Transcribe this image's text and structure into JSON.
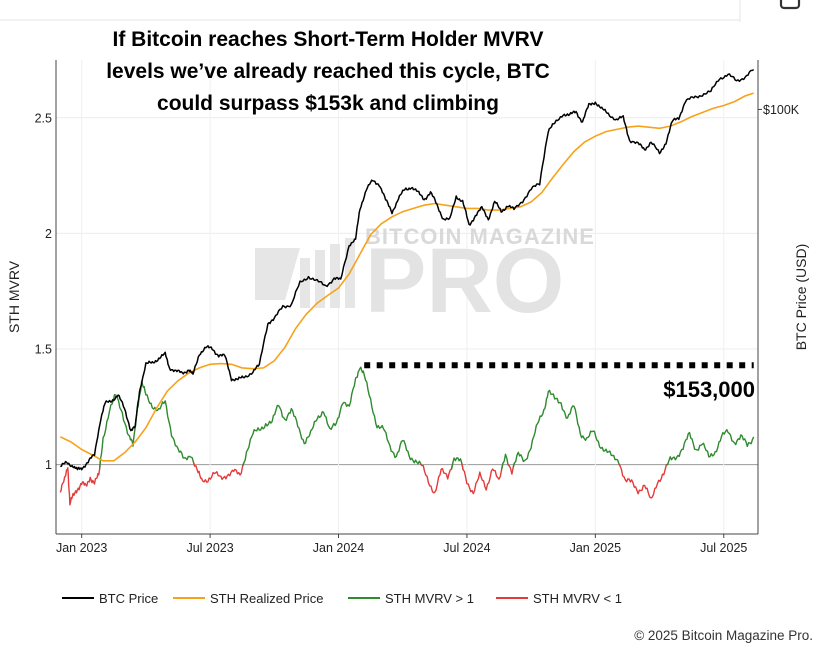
{
  "chart_data": {
    "type": "line",
    "title": "If Bitcoin reaches Short-Term Holder MVRV levels we've already reached this cycle, BTC could surpass $153k and climbing",
    "title_lines": [
      "If Bitcoin reaches Short-Term Holder MVRV",
      "levels we’ve already reached this cycle, BTC",
      "could surpass $153k and climbing"
    ],
    "ylabel_left": "STH MVRV",
    "ylabel_right": "BTC Price (USD)",
    "left_ticks": [
      "1",
      "1.5",
      "2",
      "2.5"
    ],
    "left_ylim": [
      0.7,
      2.75
    ],
    "right_scale": "log",
    "right_ylim_usd": [
      12000,
      128000
    ],
    "right_ticks": [
      {
        "label": "$100K",
        "value": 100000
      }
    ],
    "x_ticks": [
      {
        "label": "Jan 2023",
        "t": 1
      },
      {
        "label": "Jul 2023",
        "t": 7
      },
      {
        "label": "Jan 2024",
        "t": 13
      },
      {
        "label": "Jul 2024",
        "t": 19
      },
      {
        "label": "Jan 2025",
        "t": 25
      },
      {
        "label": "Jul 2025",
        "t": 31
      }
    ],
    "x_range_months": [
      -0.2,
      32.6
    ],
    "mvrv_threshold": 1,
    "target": {
      "label": "$153,000",
      "mvrv_level": 1.43,
      "from_t": 14.2,
      "to_t": 32.4
    },
    "grid": true,
    "legend_position": "bottom",
    "series": [
      {
        "name": "BTC Price",
        "axis": "right",
        "color": "#000000",
        "points": [
          [
            0,
            16800
          ],
          [
            0.3,
            17100
          ],
          [
            0.6,
            16900
          ],
          [
            0.8,
            16500
          ],
          [
            1.0,
            16700
          ],
          [
            1.3,
            17200
          ],
          [
            1.6,
            17800
          ],
          [
            1.9,
            21500
          ],
          [
            2.1,
            23000
          ],
          [
            2.4,
            23400
          ],
          [
            2.7,
            24000
          ],
          [
            3.0,
            22400
          ],
          [
            3.3,
            20200
          ],
          [
            3.5,
            20400
          ],
          [
            3.7,
            24500
          ],
          [
            4.0,
            28000
          ],
          [
            4.3,
            28200
          ],
          [
            4.6,
            28900
          ],
          [
            4.9,
            29400
          ],
          [
            5.1,
            27600
          ],
          [
            5.4,
            27000
          ],
          [
            5.7,
            26800
          ],
          [
            6.0,
            27300
          ],
          [
            6.2,
            26500
          ],
          [
            6.5,
            29600
          ],
          [
            6.8,
            30400
          ],
          [
            7.1,
            30300
          ],
          [
            7.4,
            29300
          ],
          [
            7.7,
            29100
          ],
          [
            8.0,
            26100
          ],
          [
            8.3,
            25900
          ],
          [
            8.6,
            26300
          ],
          [
            9.0,
            27000
          ],
          [
            9.3,
            27800
          ],
          [
            9.7,
            34500
          ],
          [
            10.0,
            35000
          ],
          [
            10.4,
            37500
          ],
          [
            10.8,
            37700
          ],
          [
            11.2,
            42000
          ],
          [
            11.6,
            43500
          ],
          [
            12.0,
            42300
          ],
          [
            12.4,
            41500
          ],
          [
            12.8,
            43000
          ],
          [
            13.1,
            42600
          ],
          [
            13.5,
            51000
          ],
          [
            13.8,
            52000
          ],
          [
            14.0,
            61000
          ],
          [
            14.3,
            67000
          ],
          [
            14.6,
            70000
          ],
          [
            14.9,
            69000
          ],
          [
            15.2,
            63500
          ],
          [
            15.5,
            60000
          ],
          [
            15.8,
            64000
          ],
          [
            16.1,
            67000
          ],
          [
            16.4,
            68000
          ],
          [
            16.7,
            66000
          ],
          [
            17.0,
            64000
          ],
          [
            17.3,
            66000
          ],
          [
            17.6,
            62000
          ],
          [
            17.9,
            58000
          ],
          [
            18.2,
            57500
          ],
          [
            18.5,
            65000
          ],
          [
            18.8,
            63000
          ],
          [
            19.1,
            56000
          ],
          [
            19.4,
            59000
          ],
          [
            19.7,
            61000
          ],
          [
            20.0,
            58000
          ],
          [
            20.3,
            63000
          ],
          [
            20.6,
            60000
          ],
          [
            20.9,
            62000
          ],
          [
            21.2,
            60500
          ],
          [
            21.6,
            63500
          ],
          [
            22.0,
            67000
          ],
          [
            22.4,
            69000
          ],
          [
            22.8,
            90000
          ],
          [
            23.1,
            93000
          ],
          [
            23.5,
            98000
          ],
          [
            23.8,
            97000
          ],
          [
            24.1,
            99000
          ],
          [
            24.4,
            94000
          ],
          [
            24.7,
            102000
          ],
          [
            25.0,
            104000
          ],
          [
            25.3,
            100000
          ],
          [
            25.6,
            98000
          ],
          [
            26.0,
            95000
          ],
          [
            26.3,
            96000
          ],
          [
            26.6,
            86000
          ],
          [
            27.0,
            84000
          ],
          [
            27.3,
            82000
          ],
          [
            27.6,
            85000
          ],
          [
            28.0,
            80000
          ],
          [
            28.3,
            85000
          ],
          [
            28.6,
            94000
          ],
          [
            28.9,
            96000
          ],
          [
            29.2,
            104000
          ],
          [
            29.6,
            106000
          ],
          [
            30.0,
            108000
          ],
          [
            30.4,
            109000
          ],
          [
            30.8,
            117000
          ],
          [
            31.2,
            119000
          ],
          [
            31.6,
            115000
          ],
          [
            32.0,
            118000
          ],
          [
            32.4,
            122000
          ]
        ]
      },
      {
        "name": "STH Realized Price",
        "axis": "right",
        "color": "#f7a21b",
        "points": [
          [
            0,
            19500
          ],
          [
            0.5,
            19000
          ],
          [
            1.0,
            18300
          ],
          [
            1.5,
            17800
          ],
          [
            2.0,
            17300
          ],
          [
            2.5,
            17300
          ],
          [
            3.0,
            18000
          ],
          [
            3.5,
            19000
          ],
          [
            4.0,
            20400
          ],
          [
            4.5,
            22500
          ],
          [
            5.0,
            24500
          ],
          [
            5.5,
            25800
          ],
          [
            6.0,
            26800
          ],
          [
            6.5,
            27500
          ],
          [
            7.0,
            28000
          ],
          [
            7.5,
            28100
          ],
          [
            8.0,
            28000
          ],
          [
            8.5,
            27500
          ],
          [
            9.0,
            27400
          ],
          [
            9.5,
            27500
          ],
          [
            10.0,
            28500
          ],
          [
            10.5,
            30500
          ],
          [
            11.0,
            33500
          ],
          [
            11.5,
            36000
          ],
          [
            12.0,
            38000
          ],
          [
            12.5,
            39500
          ],
          [
            13.0,
            41000
          ],
          [
            13.5,
            44000
          ],
          [
            14.0,
            48500
          ],
          [
            14.5,
            53500
          ],
          [
            15.0,
            56500
          ],
          [
            15.5,
            58500
          ],
          [
            16.0,
            60000
          ],
          [
            16.5,
            61000
          ],
          [
            17.0,
            62000
          ],
          [
            17.5,
            62500
          ],
          [
            18.0,
            62000
          ],
          [
            18.5,
            61500
          ],
          [
            19.0,
            61000
          ],
          [
            19.5,
            61000
          ],
          [
            20.0,
            60500
          ],
          [
            20.5,
            60500
          ],
          [
            21.0,
            61000
          ],
          [
            21.5,
            61500
          ],
          [
            22.0,
            63000
          ],
          [
            22.5,
            66000
          ],
          [
            23.0,
            71000
          ],
          [
            23.5,
            76000
          ],
          [
            24.0,
            81000
          ],
          [
            24.5,
            85000
          ],
          [
            25.0,
            87500
          ],
          [
            25.5,
            89500
          ],
          [
            26.0,
            90500
          ],
          [
            26.5,
            91500
          ],
          [
            27.0,
            92000
          ],
          [
            27.5,
            91500
          ],
          [
            28.0,
            91000
          ],
          [
            28.5,
            92000
          ],
          [
            29.0,
            94000
          ],
          [
            29.5,
            96500
          ],
          [
            30.0,
            98500
          ],
          [
            30.5,
            100500
          ],
          [
            31.0,
            102000
          ],
          [
            31.5,
            104000
          ],
          [
            32.0,
            107000
          ],
          [
            32.4,
            108500
          ]
        ]
      },
      {
        "name": "STH MVRV > 1",
        "axis": "left",
        "color": "#2e8b2e",
        "threshold": "above",
        "source": "mvrv"
      },
      {
        "name": "STH MVRV < 1",
        "axis": "left",
        "color": "#e33b3b",
        "threshold": "below",
        "source": "mvrv"
      }
    ],
    "mvrv_points": [
      [
        0,
        0.88
      ],
      [
        0.2,
        0.93
      ],
      [
        0.35,
        1.0
      ],
      [
        0.45,
        0.83
      ],
      [
        0.6,
        0.86
      ],
      [
        0.8,
        0.9
      ],
      [
        1.0,
        0.92
      ],
      [
        1.2,
        0.9
      ],
      [
        1.4,
        0.95
      ],
      [
        1.6,
        0.92
      ],
      [
        1.8,
        0.95
      ],
      [
        2.0,
        1.12
      ],
      [
        2.3,
        1.23
      ],
      [
        2.6,
        1.3
      ],
      [
        2.9,
        1.23
      ],
      [
        3.2,
        1.12
      ],
      [
        3.4,
        1.08
      ],
      [
        3.6,
        1.25
      ],
      [
        3.8,
        1.35
      ],
      [
        4.0,
        1.3
      ],
      [
        4.3,
        1.26
      ],
      [
        4.6,
        1.23
      ],
      [
        4.9,
        1.27
      ],
      [
        5.2,
        1.14
      ],
      [
        5.5,
        1.06
      ],
      [
        5.8,
        1.02
      ],
      [
        6.1,
        1.05
      ],
      [
        6.4,
        0.97
      ],
      [
        6.6,
        0.93
      ],
      [
        6.9,
        0.94
      ],
      [
        7.2,
        0.96
      ],
      [
        7.5,
        0.94
      ],
      [
        7.8,
        0.96
      ],
      [
        8.1,
        0.97
      ],
      [
        8.4,
        0.95
      ],
      [
        8.7,
        1.06
      ],
      [
        9.0,
        1.13
      ],
      [
        9.3,
        1.15
      ],
      [
        9.6,
        1.18
      ],
      [
        9.9,
        1.18
      ],
      [
        10.2,
        1.26
      ],
      [
        10.5,
        1.2
      ],
      [
        10.8,
        1.23
      ],
      [
        11.1,
        1.17
      ],
      [
        11.4,
        1.1
      ],
      [
        11.7,
        1.13
      ],
      [
        12.0,
        1.2
      ],
      [
        12.3,
        1.24
      ],
      [
        12.6,
        1.14
      ],
      [
        12.9,
        1.18
      ],
      [
        13.2,
        1.28
      ],
      [
        13.5,
        1.24
      ],
      [
        13.8,
        1.37
      ],
      [
        14.0,
        1.43
      ],
      [
        14.2,
        1.38
      ],
      [
        14.5,
        1.28
      ],
      [
        14.8,
        1.17
      ],
      [
        15.1,
        1.15
      ],
      [
        15.4,
        1.08
      ],
      [
        15.7,
        1.04
      ],
      [
        16.0,
        1.1
      ],
      [
        16.3,
        1.04
      ],
      [
        16.6,
        1.02
      ],
      [
        16.9,
        0.99
      ],
      [
        17.2,
        0.93
      ],
      [
        17.5,
        0.88
      ],
      [
        17.8,
        0.97
      ],
      [
        18.1,
        0.95
      ],
      [
        18.4,
        1.03
      ],
      [
        18.7,
        1.01
      ],
      [
        19.0,
        0.93
      ],
      [
        19.3,
        0.88
      ],
      [
        19.6,
        0.95
      ],
      [
        19.9,
        0.9
      ],
      [
        20.2,
        0.99
      ],
      [
        20.5,
        0.92
      ],
      [
        20.8,
        1.05
      ],
      [
        21.1,
        0.97
      ],
      [
        21.4,
        1.04
      ],
      [
        21.7,
        1.02
      ],
      [
        22.0,
        1.08
      ],
      [
        22.3,
        1.17
      ],
      [
        22.6,
        1.24
      ],
      [
        22.8,
        1.32
      ],
      [
        23.1,
        1.28
      ],
      [
        23.4,
        1.27
      ],
      [
        23.7,
        1.2
      ],
      [
        24.0,
        1.25
      ],
      [
        24.3,
        1.14
      ],
      [
        24.6,
        1.11
      ],
      [
        24.9,
        1.14
      ],
      [
        25.2,
        1.09
      ],
      [
        25.5,
        1.06
      ],
      [
        25.8,
        1.03
      ],
      [
        26.1,
        1.02
      ],
      [
        26.4,
        0.93
      ],
      [
        26.7,
        0.92
      ],
      [
        27.0,
        0.89
      ],
      [
        27.3,
        0.91
      ],
      [
        27.6,
        0.84
      ],
      [
        27.9,
        0.93
      ],
      [
        28.2,
        0.96
      ],
      [
        28.5,
        1.02
      ],
      [
        28.8,
        1.04
      ],
      [
        29.1,
        1.07
      ],
      [
        29.4,
        1.13
      ],
      [
        29.7,
        1.07
      ],
      [
        30.0,
        1.09
      ],
      [
        30.3,
        1.03
      ],
      [
        30.6,
        1.06
      ],
      [
        30.9,
        1.12
      ],
      [
        31.2,
        1.14
      ],
      [
        31.5,
        1.1
      ],
      [
        31.8,
        1.12
      ],
      [
        32.1,
        1.08
      ],
      [
        32.4,
        1.12
      ]
    ]
  },
  "watermark": {
    "line1": "BITCOIN MAGAZINE",
    "line2": "PRO"
  },
  "copyright": "© 2025 Bitcoin Magazine Pro."
}
